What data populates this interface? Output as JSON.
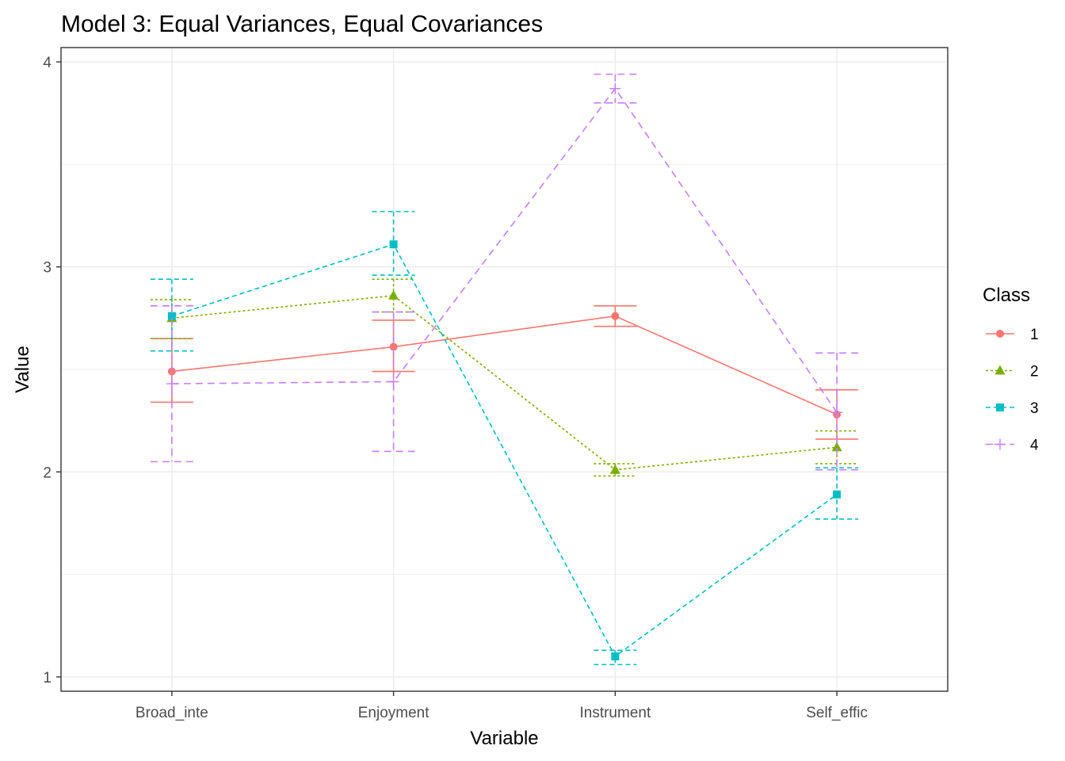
{
  "chart_data": {
    "type": "line",
    "title": "Model 3: Equal Variances, Equal Covariances",
    "xlabel": "Variable",
    "ylabel": "Value",
    "categories": [
      "Broad_inte",
      "Enjoyment",
      "Instrument",
      "Self_effic"
    ],
    "yticks": [
      "1",
      "2",
      "3",
      "4"
    ],
    "ylim": [
      0.93,
      4.07
    ],
    "grid": true,
    "legend": {
      "title": "Class",
      "placement": "right"
    },
    "series": [
      {
        "name": "1",
        "color": "#F8766D",
        "dash": "solid",
        "marker": "circle",
        "values": [
          2.49,
          2.61,
          2.76,
          2.28
        ],
        "lower": [
          2.34,
          2.49,
          2.71,
          2.16
        ],
        "upper": [
          2.65,
          2.74,
          2.81,
          2.4
        ]
      },
      {
        "name": "2",
        "color": "#7CAE00",
        "dash": "dotted",
        "marker": "triangle",
        "values": [
          2.75,
          2.86,
          2.01,
          2.12
        ],
        "lower": [
          2.65,
          2.78,
          1.98,
          2.04
        ],
        "upper": [
          2.84,
          2.94,
          2.04,
          2.2
        ]
      },
      {
        "name": "3",
        "color": "#00BFC4",
        "dash": "dashed",
        "marker": "square",
        "values": [
          2.76,
          3.11,
          1.1,
          1.89
        ],
        "lower": [
          2.59,
          2.96,
          1.06,
          1.77
        ],
        "upper": [
          2.94,
          3.27,
          1.13,
          2.02
        ]
      },
      {
        "name": "4",
        "color": "#C77CFF",
        "dash": "longdash",
        "marker": "plus",
        "values": [
          2.43,
          2.44,
          3.87,
          2.29
        ],
        "lower": [
          2.05,
          2.1,
          3.8,
          2.01
        ],
        "upper": [
          2.81,
          2.78,
          3.94,
          2.58
        ]
      }
    ]
  }
}
